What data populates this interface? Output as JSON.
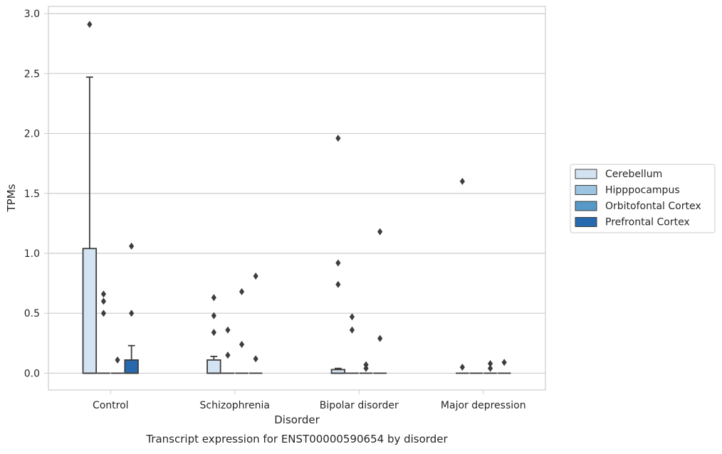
{
  "chart_data": {
    "type": "box",
    "xlabel": "Disorder",
    "ylabel": "TPMs",
    "caption": "Transcript expression for ENST00000590654 by disorder",
    "ylim": [
      -0.14,
      3.06
    ],
    "yticks": [
      "0.0",
      "0.5",
      "1.0",
      "1.5",
      "2.0",
      "2.5",
      "3.0"
    ],
    "grid": "horizontal",
    "legend_position": "right",
    "categories": [
      "Control",
      "Schizophrenia",
      "Bipolar disorder",
      "Major depression"
    ],
    "series": [
      {
        "name": "Cerebellum",
        "color": "#d4e3f2",
        "boxes": [
          {
            "whislo": 0.0,
            "q1": 0.0,
            "med": 0.0,
            "q3": 1.04,
            "whishi": 2.47,
            "fliers": [
              2.91
            ]
          },
          {
            "whislo": 0.0,
            "q1": 0.0,
            "med": 0.0,
            "q3": 0.11,
            "whishi": 0.14,
            "fliers": [
              0.63,
              0.48,
              0.34
            ]
          },
          {
            "whislo": 0.0,
            "q1": 0.0,
            "med": 0.0,
            "q3": 0.03,
            "whishi": 0.04,
            "fliers": [
              1.96,
              0.92,
              0.74
            ]
          },
          {
            "whislo": 0.0,
            "q1": 0.0,
            "med": 0.0,
            "q3": 0.0,
            "whishi": 0.0,
            "fliers": [
              1.6,
              0.05
            ]
          }
        ]
      },
      {
        "name": "Hipppocampus",
        "color": "#9cc4e0",
        "boxes": [
          {
            "whislo": 0.0,
            "q1": 0.0,
            "med": 0.0,
            "q3": 0.0,
            "whishi": 0.0,
            "fliers": [
              0.66,
              0.6,
              0.5
            ]
          },
          {
            "whislo": 0.0,
            "q1": 0.0,
            "med": 0.0,
            "q3": 0.0,
            "whishi": 0.0,
            "fliers": [
              0.36,
              0.15
            ]
          },
          {
            "whislo": 0.0,
            "q1": 0.0,
            "med": 0.0,
            "q3": 0.0,
            "whishi": 0.0,
            "fliers": [
              0.47,
              0.36
            ]
          },
          {
            "whislo": 0.0,
            "q1": 0.0,
            "med": 0.0,
            "q3": 0.0,
            "whishi": 0.0,
            "fliers": []
          }
        ]
      },
      {
        "name": "Orbitofontal Cortex",
        "color": "#5698c8",
        "boxes": [
          {
            "whislo": 0.0,
            "q1": 0.0,
            "med": 0.0,
            "q3": 0.0,
            "whishi": 0.0,
            "fliers": [
              0.11
            ]
          },
          {
            "whislo": 0.0,
            "q1": 0.0,
            "med": 0.0,
            "q3": 0.0,
            "whishi": 0.0,
            "fliers": [
              0.68,
              0.24
            ]
          },
          {
            "whislo": 0.0,
            "q1": 0.0,
            "med": 0.0,
            "q3": 0.0,
            "whishi": 0.0,
            "fliers": [
              0.07,
              0.04
            ]
          },
          {
            "whislo": 0.0,
            "q1": 0.0,
            "med": 0.0,
            "q3": 0.0,
            "whishi": 0.0,
            "fliers": [
              0.08,
              0.04
            ]
          }
        ]
      },
      {
        "name": "Prefrontal Cortex",
        "color": "#2669ae",
        "boxes": [
          {
            "whislo": 0.0,
            "q1": 0.0,
            "med": 0.0,
            "q3": 0.11,
            "whishi": 0.23,
            "fliers": [
              1.06,
              0.5
            ]
          },
          {
            "whislo": 0.0,
            "q1": 0.0,
            "med": 0.0,
            "q3": 0.0,
            "whishi": 0.0,
            "fliers": [
              0.81,
              0.12
            ]
          },
          {
            "whislo": 0.0,
            "q1": 0.0,
            "med": 0.0,
            "q3": 0.0,
            "whishi": 0.0,
            "fliers": [
              1.18,
              0.29
            ]
          },
          {
            "whislo": 0.0,
            "q1": 0.0,
            "med": 0.0,
            "q3": 0.0,
            "whishi": 0.0,
            "fliers": [
              0.09
            ]
          }
        ]
      }
    ]
  }
}
